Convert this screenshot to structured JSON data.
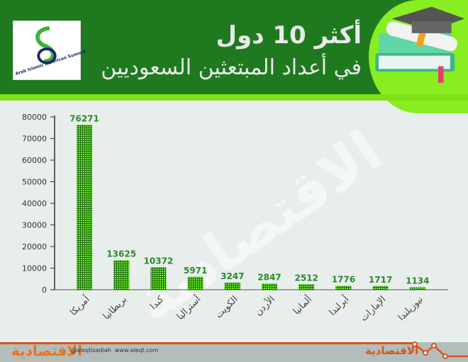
{
  "header": {
    "title_line1": "أكثر 10 دول",
    "title_line2": "في أعداد المبتعثين السعوديين",
    "logo_text": "Arab Islamic American Summit"
  },
  "footer": {
    "brand": "الاقتصادية",
    "handle": "@aleqtisadiah",
    "url": "www.aleqt.com"
  },
  "watermark": "الاقتصادية",
  "colors": {
    "header": "#1f7a1f",
    "accent": "#7fe01a",
    "bar": "#44cc11",
    "label": "#2a8a2a",
    "footer_line": "#d9541a"
  },
  "chart_data": {
    "type": "bar",
    "categories": [
      "أمريكا",
      "بريطانيا",
      "كندا",
      "أستراليا",
      "الكويت",
      "الأردن",
      "ألمانيا",
      "أيرلندا",
      "الإمارات",
      "نيوزيلندا"
    ],
    "values": [
      76271,
      13625,
      10372,
      5971,
      3247,
      2847,
      2512,
      1776,
      1717,
      1134
    ],
    "yticks": [
      "0",
      "10000",
      "20000",
      "30000",
      "40000",
      "50000",
      "60000",
      "70000",
      "80000"
    ],
    "ylim": [
      0,
      80000
    ],
    "grid": false
  }
}
